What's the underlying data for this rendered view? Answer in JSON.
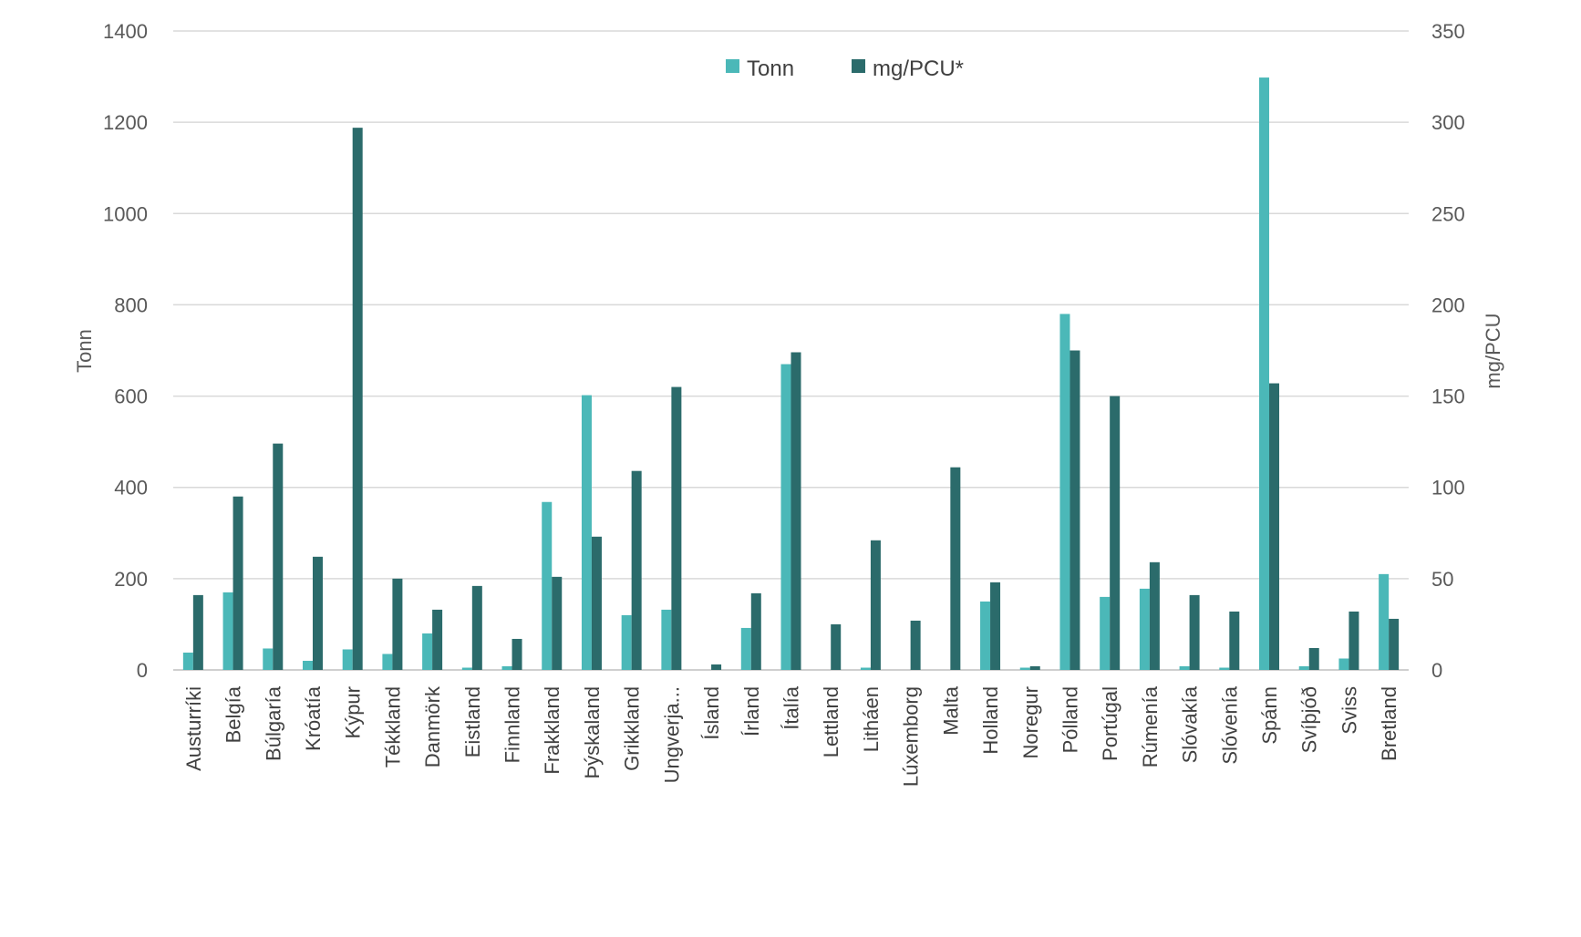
{
  "chart_data": {
    "type": "bar",
    "categories": [
      "Austurríki",
      "Belgía",
      "Búlgaría",
      "Króatía",
      "Kýpur",
      "Tékkland",
      "Danmörk",
      "Eistland",
      "Finnland",
      "Frakkland",
      "Þýskaland",
      "Grikkland",
      "Ungverja...",
      "Ísland",
      "Írland",
      "Ítalía",
      "Lettland",
      "Litháen",
      "Lúxemborg",
      "Malta",
      "Holland",
      "Noregur",
      "Pólland",
      "Portúgal",
      "Rúmenía",
      "Slóvakía",
      "Slóvenía",
      "Spánn",
      "Svíþjóð",
      "Sviss",
      "Bretland"
    ],
    "series": [
      {
        "name": "Tonn",
        "axis": "left",
        "color": "#4BB8B8",
        "values": [
          38,
          170,
          47,
          20,
          45,
          35,
          80,
          5,
          8,
          368,
          602,
          120,
          132,
          0,
          92,
          670,
          0,
          5,
          0,
          0,
          150,
          5,
          780,
          160,
          178,
          8,
          5,
          1298,
          8,
          25,
          210
        ]
      },
      {
        "name": "mg/PCU*",
        "axis": "right",
        "color": "#2B6B6B",
        "values": [
          41,
          95,
          124,
          62,
          297,
          50,
          33,
          46,
          17,
          51,
          73,
          109,
          155,
          3,
          42,
          174,
          25,
          71,
          27,
          111,
          48,
          2,
          175,
          150,
          59,
          41,
          32,
          157,
          12,
          32,
          28
        ]
      }
    ],
    "ylabel": "Tonn",
    "y2label": "mg/PCU",
    "ylim": [
      0,
      1400
    ],
    "y2lim": [
      0,
      350
    ],
    "yticks": [
      "0",
      "200",
      "400",
      "600",
      "800",
      "1000",
      "1200",
      "1400"
    ],
    "y2ticks": [
      "0",
      "50",
      "100",
      "150",
      "200",
      "250",
      "300",
      "350"
    ],
    "grid": true,
    "legend": "top-center"
  }
}
